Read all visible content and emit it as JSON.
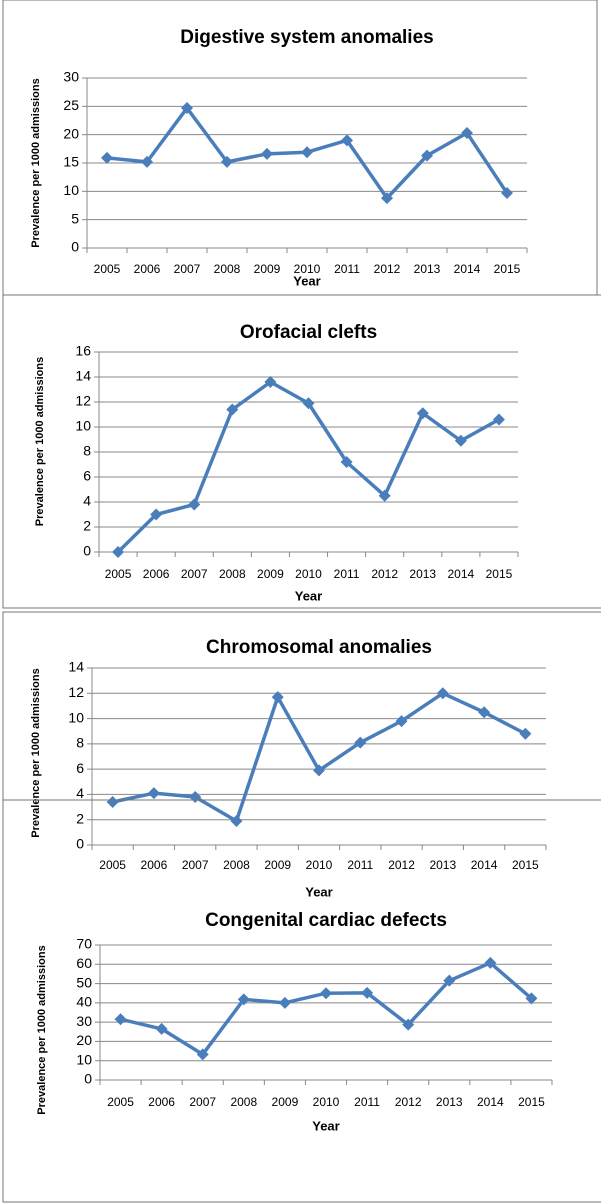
{
  "chart_data": [
    {
      "type": "line",
      "title": "Digestive system anomalies",
      "x_label": "Year",
      "y_label": "Prevalence per 1000 admissions",
      "categories": [
        "2005",
        "2006",
        "2007",
        "2008",
        "2009",
        "2010",
        "2011",
        "2012",
        "2013",
        "2014",
        "2015"
      ],
      "values": [
        15.9,
        15.2,
        24.7,
        15.2,
        16.6,
        16.9,
        19.0,
        8.8,
        16.3,
        20.3,
        9.7
      ],
      "color": "#4a7ebb",
      "ylim": [
        0,
        30
      ],
      "yticks": [
        0,
        5,
        10,
        15,
        20,
        25,
        30
      ],
      "grid": true
    },
    {
      "type": "line",
      "title": "Orofacial clefts",
      "x_label": "Year",
      "y_label": "Prevalence per 1000 admissions",
      "categories": [
        "2005",
        "2006",
        "2007",
        "2008",
        "2009",
        "2010",
        "2011",
        "2012",
        "2013",
        "2014",
        "2015"
      ],
      "values": [
        0,
        3.0,
        3.8,
        11.4,
        13.6,
        11.9,
        7.2,
        4.5,
        11.1,
        8.9,
        10.6
      ],
      "color": "#4a7ebb",
      "ylim": [
        0,
        16
      ],
      "yticks": [
        0,
        2,
        4,
        6,
        8,
        10,
        12,
        14,
        16
      ],
      "grid": true
    },
    {
      "type": "line",
      "title": "Chromosomal anomalies",
      "x_label": "Year",
      "y_label": "Prevalence per 1000 admissions",
      "categories": [
        "2005",
        "2006",
        "2007",
        "2008",
        "2009",
        "2010",
        "2011",
        "2012",
        "2013",
        "2014",
        "2015"
      ],
      "values": [
        3.4,
        4.1,
        3.8,
        1.9,
        11.7,
        5.9,
        8.1,
        9.8,
        12.0,
        10.5,
        8.8
      ],
      "color": "#4a7ebb",
      "ylim": [
        0,
        14
      ],
      "yticks": [
        0,
        2,
        4,
        6,
        8,
        10,
        12,
        14
      ],
      "grid": true
    },
    {
      "type": "line",
      "title": "Congenital cardiac  defects",
      "x_label": "Year",
      "y_label": "Prevalence per 1000 admissions",
      "categories": [
        "2005",
        "2006",
        "2007",
        "2008",
        "2009",
        "2010",
        "2011",
        "2012",
        "2013",
        "2014",
        "2015"
      ],
      "values": [
        31.5,
        26.5,
        13.3,
        41.8,
        40.0,
        45.0,
        45.2,
        28.7,
        51.5,
        60.7,
        42.3
      ],
      "color": "#4a7ebb",
      "ylim": [
        0,
        70
      ],
      "yticks": [
        0,
        10,
        20,
        30,
        40,
        50,
        60,
        70
      ],
      "grid": true
    }
  ]
}
